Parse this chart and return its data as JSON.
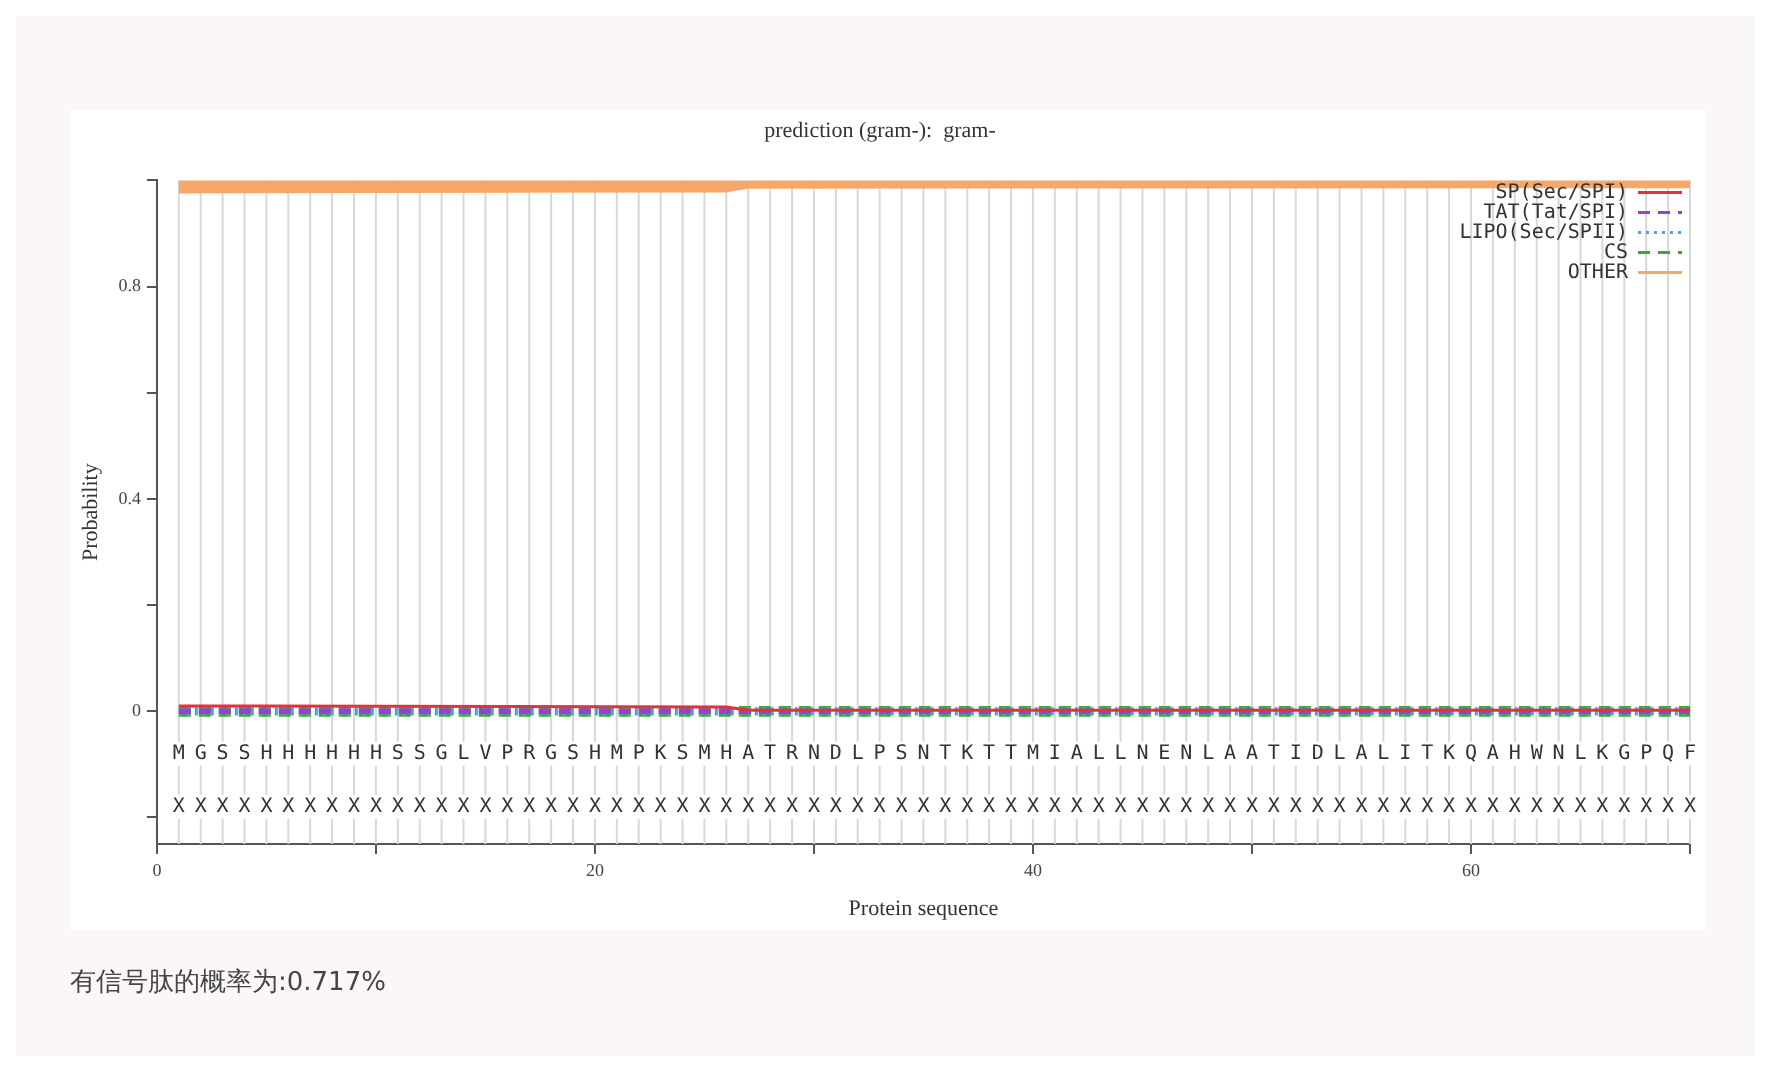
{
  "chart_data": {
    "type": "line",
    "title": "prediction (gram-):  gram-",
    "xlabel": "Protein sequence",
    "ylabel": "Probability",
    "xlim": [
      0,
      70
    ],
    "xticks": [
      0,
      {
        "value": 10,
        "label": null
      },
      20,
      {
        "value": 30,
        "label": null
      },
      40,
      {
        "value": 50,
        "label": null
      },
      60,
      {
        "value": 70,
        "label": null
      }
    ],
    "ylim": [
      -0.25,
      1
    ],
    "yticks": [
      {
        "value": -0.2,
        "label": null
      },
      0,
      {
        "value": 0.2,
        "label": null
      },
      0.4,
      {
        "value": 0.6,
        "label": null
      },
      0.8,
      {
        "value": 1,
        "label": null
      }
    ],
    "legend": "top right",
    "grid": "x",
    "series": [
      {
        "name": "SP(Sec/SPI)",
        "color": "#e8303a",
        "line_style": "solid",
        "x": [
          1,
          26,
          27,
          70
        ],
        "values": [
          0.01,
          0.008,
          0.002,
          0.002
        ]
      },
      {
        "name": "TAT(Tat/SPI)",
        "color": "#9b3fd1",
        "line_style": "dashed",
        "x": [
          1,
          70
        ],
        "values": [
          0,
          0
        ]
      },
      {
        "name": "LIPO(Sec/SPII)",
        "color": "#4a9fe8",
        "line_style": "dotted",
        "x": [
          1,
          70
        ],
        "values": [
          0,
          0
        ]
      },
      {
        "name": "CS",
        "color": "#3aa83a",
        "line_style": "dashed",
        "x": [
          1,
          70
        ],
        "values": [
          0,
          0
        ]
      },
      {
        "name": "OTHER",
        "color": "#f5a86a",
        "line_style": "solid",
        "x": [
          1,
          26,
          27,
          70
        ],
        "values": [
          0.988,
          0.99,
          0.997,
          0.998
        ]
      }
    ],
    "annotations": [
      "有信号肽的概率为:0.717%",
      {
        "text": "M",
        "x": 1,
        "y": -0.08
      },
      {
        "text": "G",
        "x": 2,
        "y": -0.08
      },
      {
        "text": "S",
        "x": 3,
        "y": -0.08
      },
      {
        "text": "S",
        "x": 4,
        "y": -0.08
      },
      {
        "text": "H",
        "x": 5,
        "y": -0.08
      },
      {
        "text": "H",
        "x": 6,
        "y": -0.08
      },
      {
        "text": "H",
        "x": 7,
        "y": -0.08
      },
      {
        "text": "H",
        "x": 8,
        "y": -0.08
      },
      {
        "text": "H",
        "x": 9,
        "y": -0.08
      },
      {
        "text": "H",
        "x": 10,
        "y": -0.08
      },
      {
        "text": "S",
        "x": 11,
        "y": -0.08
      },
      {
        "text": "S",
        "x": 12,
        "y": -0.08
      },
      {
        "text": "G",
        "x": 13,
        "y": -0.08
      },
      {
        "text": "L",
        "x": 14,
        "y": -0.08
      },
      {
        "text": "V",
        "x": 15,
        "y": -0.08
      },
      {
        "text": "P",
        "x": 16,
        "y": -0.08
      },
      {
        "text": "R",
        "x": 17,
        "y": -0.08
      },
      {
        "text": "G",
        "x": 18,
        "y": -0.08
      },
      {
        "text": "S",
        "x": 19,
        "y": -0.08
      },
      {
        "text": "H",
        "x": 20,
        "y": -0.08
      },
      {
        "text": "M",
        "x": 21,
        "y": -0.08
      },
      {
        "text": "P",
        "x": 22,
        "y": -0.08
      },
      {
        "text": "K",
        "x": 23,
        "y": -0.08
      },
      {
        "text": "S",
        "x": 24,
        "y": -0.08
      },
      {
        "text": "M",
        "x": 25,
        "y": -0.08
      },
      {
        "text": "H",
        "x": 26,
        "y": -0.08
      },
      {
        "text": "A",
        "x": 27,
        "y": -0.08
      },
      {
        "text": "T",
        "x": 28,
        "y": -0.08
      },
      {
        "text": "R",
        "x": 29,
        "y": -0.08
      },
      {
        "text": "N",
        "x": 30,
        "y": -0.08
      },
      {
        "text": "D",
        "x": 31,
        "y": -0.08
      },
      {
        "text": "L",
        "x": 32,
        "y": -0.08
      },
      {
        "text": "P",
        "x": 33,
        "y": -0.08
      },
      {
        "text": "S",
        "x": 34,
        "y": -0.08
      },
      {
        "text": "N",
        "x": 35,
        "y": -0.08
      },
      {
        "text": "T",
        "x": 36,
        "y": -0.08
      },
      {
        "text": "K",
        "x": 37,
        "y": -0.08
      },
      {
        "text": "T",
        "x": 38,
        "y": -0.08
      },
      {
        "text": "T",
        "x": 39,
        "y": -0.08
      },
      {
        "text": "M",
        "x": 40,
        "y": -0.08
      },
      {
        "text": "I",
        "x": 41,
        "y": -0.08
      },
      {
        "text": "A",
        "x": 42,
        "y": -0.08
      },
      {
        "text": "L",
        "x": 43,
        "y": -0.08
      },
      {
        "text": "L",
        "x": 44,
        "y": -0.08
      },
      {
        "text": "N",
        "x": 45,
        "y": -0.08
      },
      {
        "text": "E",
        "x": 46,
        "y": -0.08
      },
      {
        "text": "N",
        "x": 47,
        "y": -0.08
      },
      {
        "text": "L",
        "x": 48,
        "y": -0.08
      },
      {
        "text": "A",
        "x": 49,
        "y": -0.08
      },
      {
        "text": "A",
        "x": 50,
        "y": -0.08
      },
      {
        "text": "T",
        "x": 51,
        "y": -0.08
      },
      {
        "text": "I",
        "x": 52,
        "y": -0.08
      },
      {
        "text": "D",
        "x": 53,
        "y": -0.08
      },
      {
        "text": "L",
        "x": 54,
        "y": -0.08
      },
      {
        "text": "A",
        "x": 55,
        "y": -0.08
      },
      {
        "text": "L",
        "x": 56,
        "y": -0.08
      },
      {
        "text": "I",
        "x": 57,
        "y": -0.08
      },
      {
        "text": "T",
        "x": 58,
        "y": -0.08
      },
      {
        "text": "K",
        "x": 59,
        "y": -0.08
      },
      {
        "text": "Q",
        "x": 60,
        "y": -0.08
      },
      {
        "text": "A",
        "x": 61,
        "y": -0.08
      },
      {
        "text": "H",
        "x": 62,
        "y": -0.08
      },
      {
        "text": "W",
        "x": 63,
        "y": -0.08
      },
      {
        "text": "N",
        "x": 64,
        "y": -0.08
      },
      {
        "text": "L",
        "x": 65,
        "y": -0.08
      },
      {
        "text": "K",
        "x": 66,
        "y": -0.08
      },
      {
        "text": "G",
        "x": 67,
        "y": -0.08
      },
      {
        "text": "P",
        "x": 68,
        "y": -0.08
      },
      {
        "text": "Q",
        "x": 69,
        "y": -0.08
      },
      {
        "text": "F",
        "x": 70,
        "y": -0.08
      },
      {
        "text": "X",
        "x": 1,
        "y": -0.18
      },
      {
        "text": "X",
        "x": 2,
        "y": -0.18
      },
      {
        "text": "X",
        "x": 3,
        "y": -0.18
      },
      {
        "text": "X",
        "x": 4,
        "y": -0.18
      },
      {
        "text": "X",
        "x": 5,
        "y": -0.18
      },
      {
        "text": "X",
        "x": 6,
        "y": -0.18
      },
      {
        "text": "X",
        "x": 7,
        "y": -0.18
      },
      {
        "text": "X",
        "x": 8,
        "y": -0.18
      },
      {
        "text": "X",
        "x": 9,
        "y": -0.18
      },
      {
        "text": "X",
        "x": 10,
        "y": -0.18
      },
      {
        "text": "X",
        "x": 11,
        "y": -0.18
      },
      {
        "text": "X",
        "x": 12,
        "y": -0.18
      },
      {
        "text": "X",
        "x": 13,
        "y": -0.18
      },
      {
        "text": "X",
        "x": 14,
        "y": -0.18
      },
      {
        "text": "X",
        "x": 15,
        "y": -0.18
      },
      {
        "text": "X",
        "x": 16,
        "y": -0.18
      },
      {
        "text": "X",
        "x": 17,
        "y": -0.18
      },
      {
        "text": "X",
        "x": 18,
        "y": -0.18
      },
      {
        "text": "X",
        "x": 19,
        "y": -0.18
      },
      {
        "text": "X",
        "x": 20,
        "y": -0.18
      },
      {
        "text": "X",
        "x": 21,
        "y": -0.18
      },
      {
        "text": "X",
        "x": 22,
        "y": -0.18
      },
      {
        "text": "X",
        "x": 23,
        "y": -0.18
      },
      {
        "text": "X",
        "x": 24,
        "y": -0.18
      },
      {
        "text": "X",
        "x": 25,
        "y": -0.18
      },
      {
        "text": "X",
        "x": 26,
        "y": -0.18
      },
      {
        "text": "X",
        "x": 27,
        "y": -0.18
      },
      {
        "text": "X",
        "x": 28,
        "y": -0.18
      },
      {
        "text": "X",
        "x": 29,
        "y": -0.18
      },
      {
        "text": "X",
        "x": 30,
        "y": -0.18
      },
      {
        "text": "X",
        "x": 31,
        "y": -0.18
      },
      {
        "text": "X",
        "x": 32,
        "y": -0.18
      },
      {
        "text": "X",
        "x": 33,
        "y": -0.18
      },
      {
        "text": "X",
        "x": 34,
        "y": -0.18
      },
      {
        "text": "X",
        "x": 35,
        "y": -0.18
      },
      {
        "text": "X",
        "x": 36,
        "y": -0.18
      },
      {
        "text": "X",
        "x": 37,
        "y": -0.18
      },
      {
        "text": "X",
        "x": 38,
        "y": -0.18
      },
      {
        "text": "X",
        "x": 39,
        "y": -0.18
      },
      {
        "text": "X",
        "x": 40,
        "y": -0.18
      },
      {
        "text": "X",
        "x": 41,
        "y": -0.18
      },
      {
        "text": "X",
        "x": 42,
        "y": -0.18
      },
      {
        "text": "X",
        "x": 43,
        "y": -0.18
      },
      {
        "text": "X",
        "x": 44,
        "y": -0.18
      },
      {
        "text": "X",
        "x": 45,
        "y": -0.18
      },
      {
        "text": "X",
        "x": 46,
        "y": -0.18
      },
      {
        "text": "X",
        "x": 47,
        "y": -0.18
      },
      {
        "text": "X",
        "x": 48,
        "y": -0.18
      },
      {
        "text": "X",
        "x": 49,
        "y": -0.18
      },
      {
        "text": "X",
        "x": 50,
        "y": -0.18
      },
      {
        "text": "X",
        "x": 51,
        "y": -0.18
      },
      {
        "text": "X",
        "x": 52,
        "y": -0.18
      },
      {
        "text": "X",
        "x": 53,
        "y": -0.18
      },
      {
        "text": "X",
        "x": 54,
        "y": -0.18
      },
      {
        "text": "X",
        "x": 55,
        "y": -0.18
      },
      {
        "text": "X",
        "x": 56,
        "y": -0.18
      },
      {
        "text": "X",
        "x": 57,
        "y": -0.18
      },
      {
        "text": "X",
        "x": 58,
        "y": -0.18
      },
      {
        "text": "X",
        "x": 59,
        "y": -0.18
      },
      {
        "text": "X",
        "x": 60,
        "y": -0.18
      },
      {
        "text": "X",
        "x": 61,
        "y": -0.18
      },
      {
        "text": "X",
        "x": 62,
        "y": -0.18
      },
      {
        "text": "X",
        "x": 63,
        "y": -0.18
      },
      {
        "text": "X",
        "x": 64,
        "y": -0.18
      },
      {
        "text": "X",
        "x": 65,
        "y": -0.18
      },
      {
        "text": "X",
        "x": 66,
        "y": -0.18
      },
      {
        "text": "X",
        "x": 67,
        "y": -0.18
      },
      {
        "text": "X",
        "x": 68,
        "y": -0.18
      },
      {
        "text": "X",
        "x": 69,
        "y": -0.18
      },
      {
        "text": "X",
        "x": 70,
        "y": -0.18
      }
    ]
  }
}
